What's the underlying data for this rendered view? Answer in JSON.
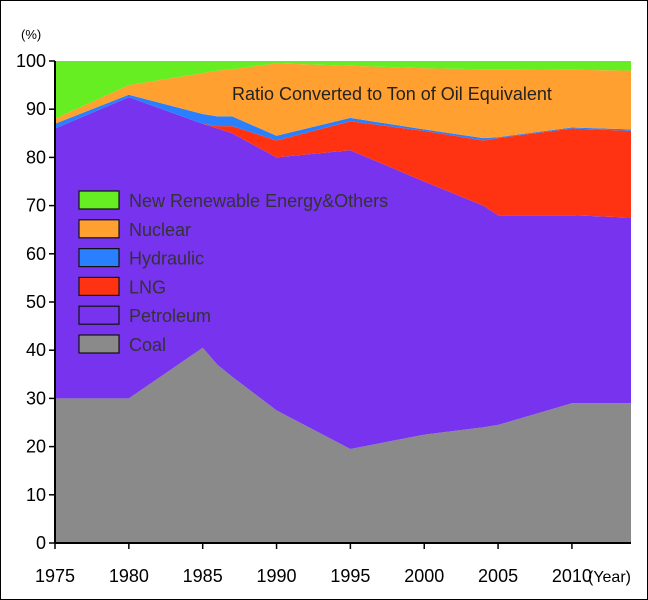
{
  "chart_data": {
    "type": "area",
    "stacked": true,
    "title": "Ratio Converted to Ton of Oil Equivalent",
    "ylabel": "(%)",
    "xlabel": "(Year)",
    "ylim": [
      0,
      100
    ],
    "xlim": [
      1975,
      2014
    ],
    "yticks": [
      0,
      10,
      20,
      30,
      40,
      50,
      60,
      70,
      80,
      90,
      100
    ],
    "xticks": [
      1975,
      1980,
      1985,
      1990,
      1995,
      2000,
      2005,
      2010
    ],
    "xtick_labels": [
      "1975",
      "1980",
      "1985",
      "1990",
      "1995",
      "2000",
      "2005",
      "2010"
    ],
    "ytick_labels": [
      "0",
      "10",
      "20",
      "30",
      "40",
      "50",
      "60",
      "70",
      "80",
      "90",
      "100"
    ],
    "x": [
      1975,
      1980,
      1985,
      1986,
      1987,
      1990,
      1995,
      2000,
      2004,
      2005,
      2010,
      2014
    ],
    "series": [
      {
        "name": "Coal",
        "color": "#8a8a8a",
        "cumulative": [
          30,
          30,
          40.5,
          37,
          34.5,
          27.5,
          19.5,
          22.5,
          24,
          24.5,
          29,
          29
        ]
      },
      {
        "name": "Petroleum",
        "color": "#7733ee",
        "cumulative": [
          86,
          92.5,
          87,
          86,
          85,
          80,
          81.5,
          75,
          70,
          68,
          68,
          67.5
        ]
      },
      {
        "name": "LNG",
        "color": "#ff3311",
        "cumulative": [
          86,
          92.5,
          87,
          86.5,
          86.5,
          83.5,
          87.5,
          85.5,
          83.5,
          84,
          86,
          85.5
        ]
      },
      {
        "name": "Hydraulic",
        "color": "#2a7fff",
        "cumulative": [
          87,
          93,
          89,
          88.5,
          88.5,
          84.5,
          88.2,
          85.8,
          84,
          84.2,
          86.2,
          85.8
        ]
      },
      {
        "name": "Nuclear",
        "color": "#ffa030",
        "cumulative": [
          88,
          95,
          97.5,
          98,
          98.3,
          99.5,
          99,
          98.5,
          98.3,
          98.3,
          98.2,
          98
        ]
      },
      {
        "name": "New Renewable Energy&Others",
        "color": "#66ee22",
        "cumulative": [
          100,
          100,
          100,
          100,
          100,
          100,
          100,
          100,
          100,
          100,
          100,
          100
        ]
      }
    ],
    "legend": {
      "placement": "center-left",
      "order": [
        "New Renewable Energy&Others",
        "Nuclear",
        "Hydraulic",
        "LNG",
        "Petroleum",
        "Coal"
      ]
    },
    "grid": false
  }
}
